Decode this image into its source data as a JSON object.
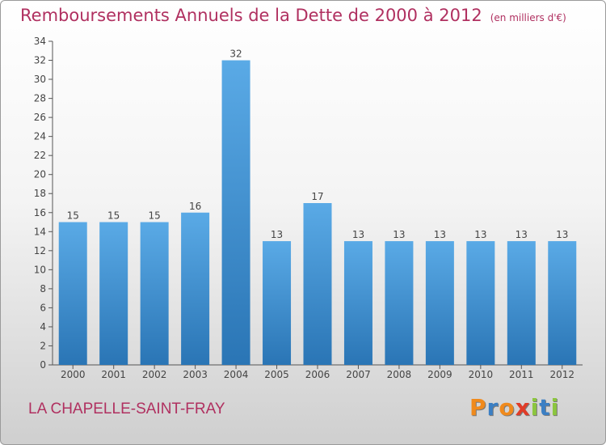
{
  "title": "Remboursements Annuels de la Dette de 2000 à 2012",
  "subtitle": "(en milliers d'€)",
  "commune": "LA CHAPELLE-SAINT-FRAY",
  "logo": {
    "letters": [
      "P",
      "r",
      "o",
      "x",
      "i",
      "t",
      "i"
    ],
    "colors": [
      "#f08a1c",
      "#3b7fc4",
      "#f08a1c",
      "#e03c28",
      "#8cc63f",
      "#3b7fc4",
      "#8cc63f"
    ]
  },
  "colors": {
    "bar_top": "#5aaae6",
    "bar_bottom": "#2a75b5",
    "text": "#b03060",
    "axis": "#555555"
  },
  "chart_data": {
    "type": "bar",
    "categories": [
      "2000",
      "2001",
      "2002",
      "2003",
      "2004",
      "2005",
      "2006",
      "2007",
      "2008",
      "2009",
      "2010",
      "2011",
      "2012"
    ],
    "values": [
      15,
      15,
      15,
      16,
      32,
      13,
      17,
      13,
      13,
      13,
      13,
      13,
      13
    ],
    "yticks": [
      0,
      2,
      4,
      6,
      8,
      10,
      12,
      14,
      16,
      18,
      20,
      22,
      24,
      26,
      28,
      30,
      32,
      34
    ],
    "ylim": [
      0,
      34
    ],
    "grid": false
  }
}
